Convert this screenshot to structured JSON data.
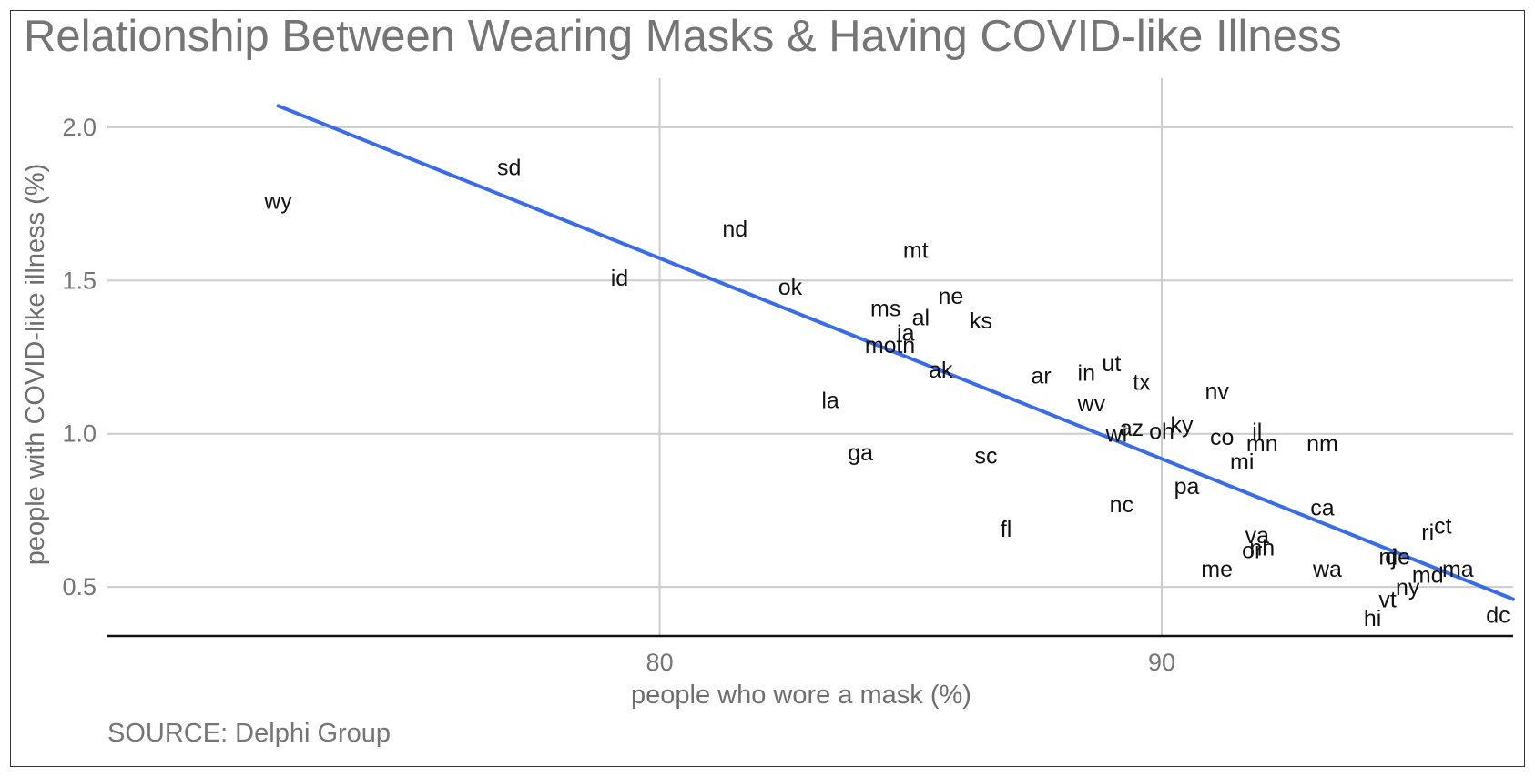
{
  "chart_data": {
    "type": "scatter",
    "title": "Relationship Between Wearing Masks & Having COVID-like Illness",
    "source": "SOURCE: Delphi Group",
    "xlabel": "people who wore a mask (%)",
    "ylabel": "people with COVID-like illness (%)",
    "xlim": [
      69.0,
      97.0
    ],
    "ylim": [
      0.34,
      2.16
    ],
    "xticks": [
      80,
      90
    ],
    "xtick_labels": [
      "80",
      "90"
    ],
    "yticks": [
      0.5,
      1.0,
      1.5,
      2.0
    ],
    "ytick_labels": [
      "0.5",
      "1.0",
      "1.5",
      "2.0"
    ],
    "grid": true,
    "legend": "none",
    "trendline": {
      "x": [
        72.4,
        97.0
      ],
      "y": [
        2.07,
        0.46
      ],
      "color": "#3b6ce8"
    },
    "colors": {
      "trendline": "#3b6ce8",
      "label": "#111111",
      "grid": "#cccccc",
      "axis_text": "#757575",
      "baseline": "#111111"
    },
    "points": [
      {
        "label": "wy",
        "x": 72.4,
        "y": 1.76
      },
      {
        "label": "sd",
        "x": 77.0,
        "y": 1.87
      },
      {
        "label": "id",
        "x": 79.2,
        "y": 1.51
      },
      {
        "label": "nd",
        "x": 81.5,
        "y": 1.67
      },
      {
        "label": "ok",
        "x": 82.6,
        "y": 1.48
      },
      {
        "label": "mt",
        "x": 85.1,
        "y": 1.6
      },
      {
        "label": "ms",
        "x": 84.5,
        "y": 1.41
      },
      {
        "label": "al",
        "x": 85.2,
        "y": 1.38
      },
      {
        "label": "ne",
        "x": 85.8,
        "y": 1.45
      },
      {
        "label": "ks",
        "x": 86.4,
        "y": 1.37
      },
      {
        "label": "ia",
        "x": 84.9,
        "y": 1.33
      },
      {
        "label": "mo",
        "x": 84.4,
        "y": 1.29
      },
      {
        "label": "tn",
        "x": 84.9,
        "y": 1.29
      },
      {
        "label": "ak",
        "x": 85.6,
        "y": 1.21
      },
      {
        "label": "la",
        "x": 83.4,
        "y": 1.11
      },
      {
        "label": "ga",
        "x": 84.0,
        "y": 0.94
      },
      {
        "label": "sc",
        "x": 86.5,
        "y": 0.93
      },
      {
        "label": "fl",
        "x": 86.9,
        "y": 0.69
      },
      {
        "label": "ar",
        "x": 87.6,
        "y": 1.19
      },
      {
        "label": "in",
        "x": 88.5,
        "y": 1.2
      },
      {
        "label": "ut",
        "x": 89.0,
        "y": 1.23
      },
      {
        "label": "tx",
        "x": 89.6,
        "y": 1.17
      },
      {
        "label": "wv",
        "x": 88.6,
        "y": 1.1
      },
      {
        "label": "nv",
        "x": 91.1,
        "y": 1.14
      },
      {
        "label": "az",
        "x": 89.4,
        "y": 1.02
      },
      {
        "label": "wi",
        "x": 89.1,
        "y": 1.0
      },
      {
        "label": "oh",
        "x": 90.0,
        "y": 1.01
      },
      {
        "label": "ky",
        "x": 90.4,
        "y": 1.03
      },
      {
        "label": "il",
        "x": 91.9,
        "y": 1.01
      },
      {
        "label": "co",
        "x": 91.2,
        "y": 0.99
      },
      {
        "label": "mn",
        "x": 92.0,
        "y": 0.97
      },
      {
        "label": "nm",
        "x": 93.2,
        "y": 0.97
      },
      {
        "label": "mi",
        "x": 91.6,
        "y": 0.91
      },
      {
        "label": "pa",
        "x": 90.5,
        "y": 0.83
      },
      {
        "label": "nc",
        "x": 89.2,
        "y": 0.77
      },
      {
        "label": "ca",
        "x": 93.2,
        "y": 0.76
      },
      {
        "label": "va",
        "x": 91.9,
        "y": 0.67
      },
      {
        "label": "nh",
        "x": 92.0,
        "y": 0.63
      },
      {
        "label": "or",
        "x": 91.8,
        "y": 0.62
      },
      {
        "label": "me",
        "x": 91.1,
        "y": 0.56
      },
      {
        "label": "wa",
        "x": 93.3,
        "y": 0.56
      },
      {
        "label": "nj",
        "x": 94.5,
        "y": 0.6
      },
      {
        "label": "de",
        "x": 94.7,
        "y": 0.6
      },
      {
        "label": "ri",
        "x": 95.3,
        "y": 0.68
      },
      {
        "label": "ct",
        "x": 95.6,
        "y": 0.7
      },
      {
        "label": "ma",
        "x": 95.9,
        "y": 0.56
      },
      {
        "label": "md",
        "x": 95.3,
        "y": 0.54
      },
      {
        "label": "ny",
        "x": 94.9,
        "y": 0.5
      },
      {
        "label": "vt",
        "x": 94.5,
        "y": 0.46
      },
      {
        "label": "hi",
        "x": 94.2,
        "y": 0.4
      },
      {
        "label": "dc",
        "x": 96.7,
        "y": 0.41
      }
    ]
  }
}
